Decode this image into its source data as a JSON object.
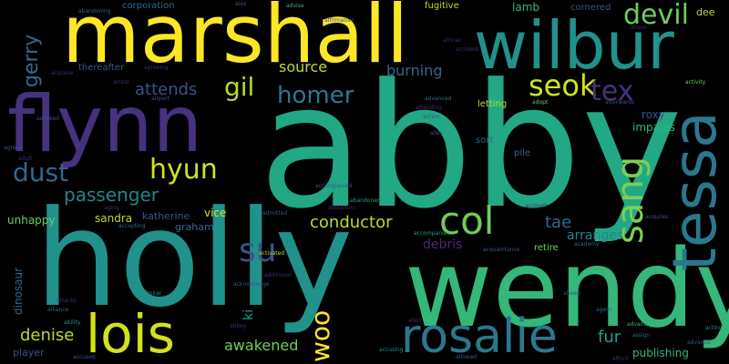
{
  "words": [
    {
      "text": "abby",
      "color": "#22a884"
    },
    {
      "text": "holly",
      "color": "#21918c"
    },
    {
      "text": "wendy",
      "color": "#35b779"
    },
    {
      "text": "marshall",
      "color": "#fde725"
    },
    {
      "text": "flynn",
      "color": "#46327e"
    },
    {
      "text": "wilbur",
      "color": "#21918c"
    },
    {
      "text": "tessa",
      "color": "#2a788e"
    },
    {
      "text": "rosalie",
      "color": "#2a788e"
    },
    {
      "text": "lois",
      "color": "#d2e21b"
    },
    {
      "text": "col",
      "color": "#6ece58"
    },
    {
      "text": "sang",
      "color": "#7ad151"
    },
    {
      "text": "devil",
      "color": "#6ece58"
    },
    {
      "text": "seok",
      "color": "#d2e21b"
    },
    {
      "text": "tex",
      "color": "#46327e"
    },
    {
      "text": "homer",
      "color": "#2a788e"
    },
    {
      "text": "gil",
      "color": "#b5de2b"
    },
    {
      "text": "hyun",
      "color": "#d2e21b"
    },
    {
      "text": "dust",
      "color": "#31688e"
    },
    {
      "text": "su",
      "color": "#3b528b"
    },
    {
      "text": "gerry",
      "color": "#31688e"
    },
    {
      "text": "passenger",
      "color": "#25848e"
    },
    {
      "text": "attends",
      "color": "#3b528b"
    },
    {
      "text": "source",
      "color": "#b5de2b"
    },
    {
      "text": "burning",
      "color": "#31688e"
    },
    {
      "text": "conductor",
      "color": "#b5de2b"
    },
    {
      "text": "denise",
      "color": "#b5de2b"
    },
    {
      "text": "awakened",
      "color": "#6ece58"
    },
    {
      "text": "woo",
      "color": "#fde725"
    },
    {
      "text": "fur",
      "color": "#1f9e89"
    },
    {
      "text": "tae",
      "color": "#31688e"
    },
    {
      "text": "debris",
      "color": "#482878"
    },
    {
      "text": "arranges",
      "color": "#25848e"
    },
    {
      "text": "publishing",
      "color": "#35b779"
    },
    {
      "text": "dee",
      "color": "#b5de2b"
    },
    {
      "text": "roxy",
      "color": "#3b528b"
    },
    {
      "text": "impales",
      "color": "#35b779"
    },
    {
      "text": "sandra",
      "color": "#b5de2b"
    },
    {
      "text": "unhappy",
      "color": "#6ece58"
    },
    {
      "text": "vice",
      "color": "#d2e21b"
    },
    {
      "text": "katherine",
      "color": "#3b528b"
    },
    {
      "text": "graham",
      "color": "#31688e"
    },
    {
      "text": "dinosaur",
      "color": "#31688e"
    },
    {
      "text": "player",
      "color": "#3b528b"
    },
    {
      "text": "ki",
      "color": "#1f9e89"
    },
    {
      "text": "lamb",
      "color": "#35b779"
    },
    {
      "text": "cornered",
      "color": "#3b528b"
    },
    {
      "text": "fugitive",
      "color": "#b5de2b"
    },
    {
      "text": "corporation",
      "color": "#31688e"
    },
    {
      "text": "thereafter",
      "color": "#3b528b"
    },
    {
      "text": "retire",
      "color": "#6ece58"
    },
    {
      "text": "sort",
      "color": "#31688e"
    },
    {
      "text": "pile",
      "color": "#31688e"
    },
    {
      "text": "letting",
      "color": "#b5de2b"
    },
    {
      "text": "abandoning",
      "color": "#31688e"
    },
    {
      "text": "aiex",
      "color": "#3b528b"
    },
    {
      "text": "advise",
      "color": "#35b779"
    },
    {
      "text": "affirmative",
      "color": "#3b528b"
    },
    {
      "text": "accident",
      "color": "#482878"
    },
    {
      "text": "airport",
      "color": "#3b528b"
    },
    {
      "text": "arrest",
      "color": "#482878"
    },
    {
      "text": "adopted",
      "color": "#3b528b"
    },
    {
      "text": "afterwards",
      "color": "#3b528b"
    },
    {
      "text": "adopt",
      "color": "#6ece58"
    },
    {
      "text": "advanced",
      "color": "#31688e"
    },
    {
      "text": "activity",
      "color": "#6ece58"
    },
    {
      "text": "acquaintance",
      "color": "#3b528b"
    },
    {
      "text": "academy",
      "color": "#31688e"
    },
    {
      "text": "adult",
      "color": "#482878"
    },
    {
      "text": "agreeing",
      "color": "#482878"
    },
    {
      "text": "abandoned",
      "color": "#1f9e89"
    },
    {
      "text": "admitted",
      "color": "#3b528b"
    },
    {
      "text": "abduction",
      "color": "#482878"
    },
    {
      "text": "activated",
      "color": "#b5de2b"
    },
    {
      "text": "additional",
      "color": "#482878"
    },
    {
      "text": "acknowledge",
      "color": "#3b528b"
    },
    {
      "text": "abbey",
      "color": "#482878"
    },
    {
      "text": "alliance",
      "color": "#31688e"
    },
    {
      "text": "accompanies",
      "color": "#1f9e89"
    },
    {
      "text": "alley",
      "color": "#3b528b"
    },
    {
      "text": "account",
      "color": "#482878"
    },
    {
      "text": "acquires",
      "color": "#3b528b"
    },
    {
      "text": "advantage",
      "color": "#35b779"
    },
    {
      "text": "assign",
      "color": "#31688e"
    },
    {
      "text": "acting",
      "color": "#21918c"
    },
    {
      "text": "ahead",
      "color": "#3b528b"
    },
    {
      "text": "ability",
      "color": "#21918c"
    },
    {
      "text": "alien",
      "color": "#482878"
    },
    {
      "text": "admirer",
      "color": "#21918c"
    },
    {
      "text": "accused",
      "color": "#3b528b"
    },
    {
      "text": "attacks",
      "color": "#482878"
    },
    {
      "text": "accepting",
      "color": "#31688e"
    },
    {
      "text": "accompanied",
      "color": "#3b528b"
    },
    {
      "text": "aging",
      "color": "#482878"
    },
    {
      "text": "agent",
      "color": "#31688e"
    },
    {
      "text": "advance",
      "color": "#3b528b"
    },
    {
      "text": "afford",
      "color": "#482878"
    },
    {
      "text": "accusing",
      "color": "#21918c"
    },
    {
      "text": "affair",
      "color": "#3b528b"
    },
    {
      "text": "agrees",
      "color": "#3b528b"
    },
    {
      "text": "african",
      "color": "#482878"
    },
    {
      "text": "alison",
      "color": "#482878"
    },
    {
      "text": "airplane",
      "color": "#482878"
    },
    {
      "text": "attending",
      "color": "#482878"
    },
    {
      "text": "allowed",
      "color": "#3b528b"
    },
    {
      "text": "action",
      "color": "#3b528b"
    }
  ]
}
